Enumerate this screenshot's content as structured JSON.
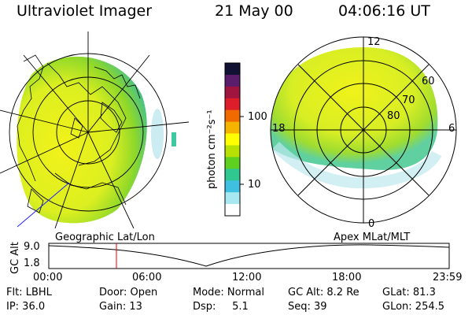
{
  "header": {
    "title": "Ultraviolet Imager",
    "date": "21 May 00",
    "time": "04:06:16 UT"
  },
  "colorbar": {
    "label": "photon cm⁻²s⁻¹",
    "ticks": [
      "100",
      "10"
    ],
    "colors": [
      "#111133",
      "#5a1d6b",
      "#a01440",
      "#dd1e2a",
      "#f06a00",
      "#f5b400",
      "#ffff00",
      "#b8e000",
      "#60d020",
      "#30c890",
      "#40c0e0",
      "#a8e8f0",
      "#ffffff"
    ]
  },
  "left_panel": {
    "label": "Geographic Lat/Lon"
  },
  "right_panel": {
    "label": "Apex MLat/MLT",
    "mlt_labels": [
      "12",
      "18",
      "6",
      "0"
    ],
    "lat_labels": [
      "60",
      "70",
      "80"
    ]
  },
  "timeline": {
    "ylabel": "GC Alt",
    "y_ticks": [
      "9.0",
      "1.8"
    ],
    "x_ticks": [
      "00:00",
      "06:00",
      "12:00",
      "18:00",
      "23:59"
    ]
  },
  "info": {
    "flt": "Flt: LBHL",
    "ip": "IP: 36.0",
    "door": "Door: Open",
    "gain": "Gain: 13",
    "mode": "Mode: Normal",
    "dsp": "Dsp:     5.1",
    "gcalt": "GC Alt: 8.2 Re",
    "seq": "Seq: 39",
    "glat": "GLat: 81.3",
    "glon": "GLon: 254.5"
  }
}
